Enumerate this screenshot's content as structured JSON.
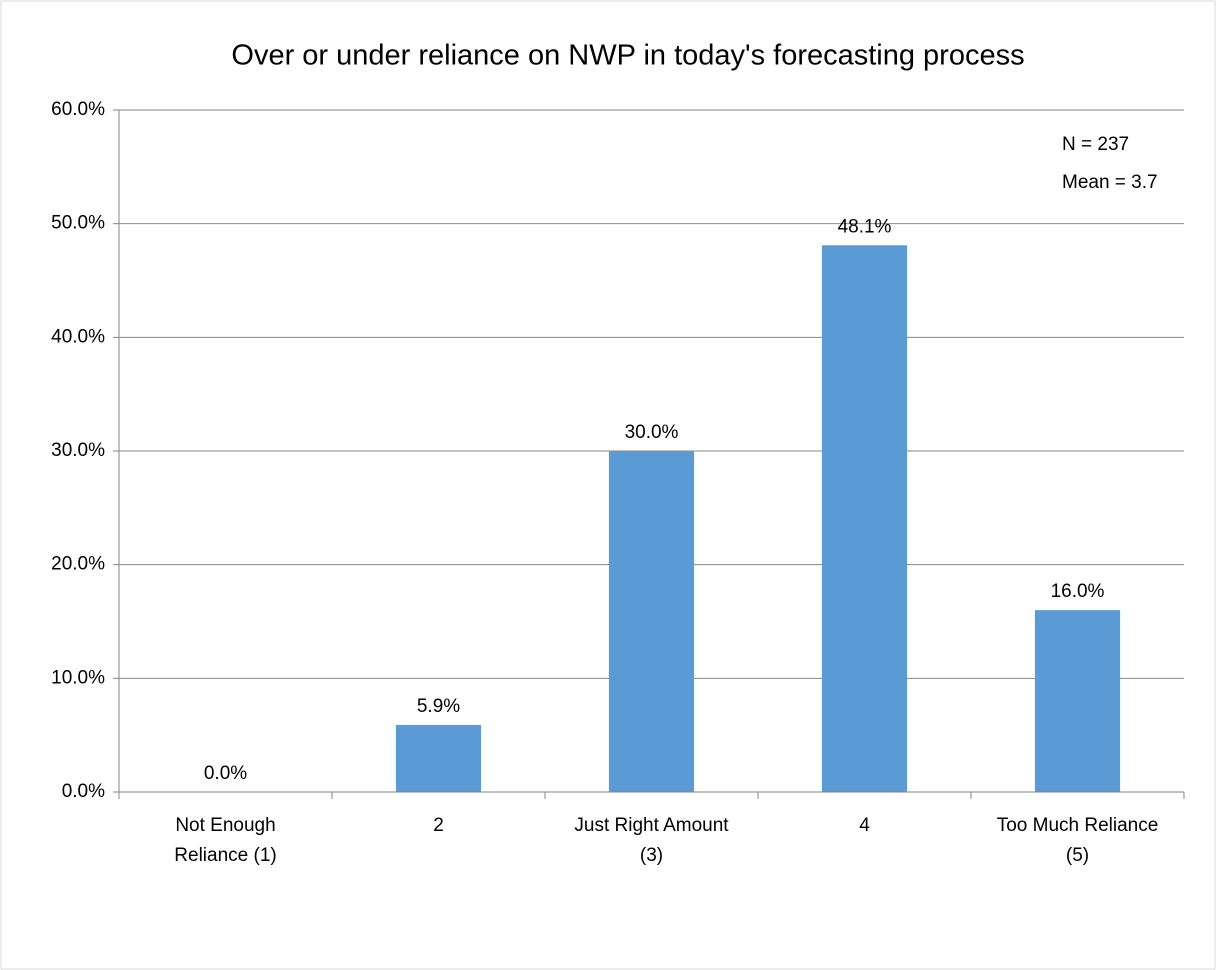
{
  "chart_data": {
    "type": "bar",
    "title": "Over or under reliance on NWP in today's forecasting process",
    "annotations": [
      "N = 237",
      "Mean =  3.7"
    ],
    "categories": [
      [
        "Not Enough",
        "Reliance (1)"
      ],
      [
        "2"
      ],
      [
        "Just Right Amount",
        "(3)"
      ],
      [
        "4"
      ],
      [
        "Too Much Reliance",
        "(5)"
      ]
    ],
    "values": [
      0,
      5.9,
      30.0,
      48.1,
      16.0
    ],
    "value_labels": [
      "0.0%",
      "5.9%",
      "30.0%",
      "48.1%",
      "16.0%"
    ],
    "color": "#5b9bd5",
    "ylim": [
      0,
      60
    ],
    "yticks": [
      {
        "value": 0,
        "label": "0.0%"
      },
      {
        "value": 10,
        "label": "10.0%"
      },
      {
        "value": 20,
        "label": "20.0%"
      },
      {
        "value": 30,
        "label": "30.0%"
      },
      {
        "value": 40,
        "label": "40.0%"
      },
      {
        "value": 50,
        "label": "50.0%"
      },
      {
        "value": 60,
        "label": "60.0%"
      }
    ],
    "grid": true
  }
}
